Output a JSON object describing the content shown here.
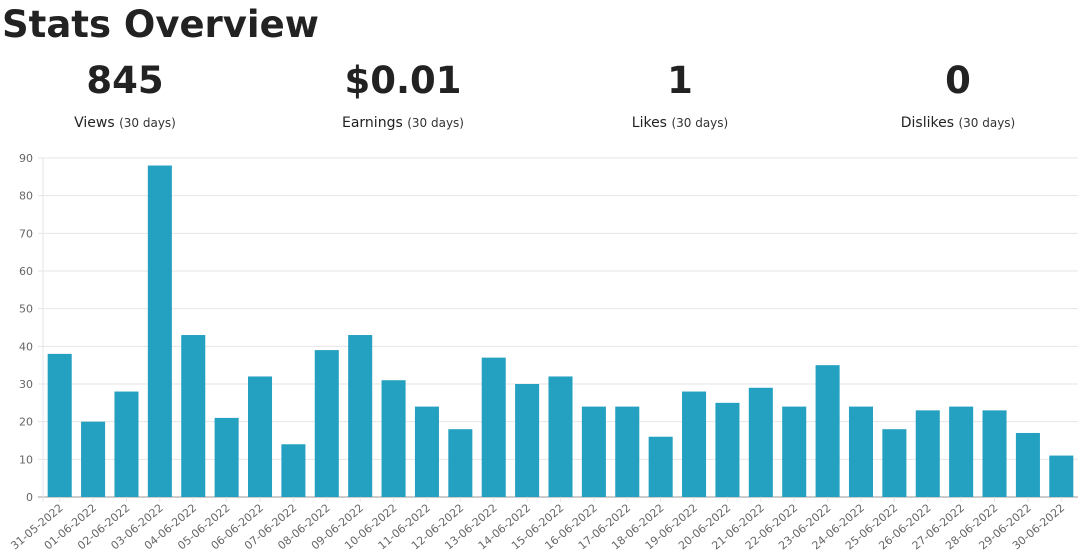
{
  "page": {
    "title": "Stats Overview"
  },
  "stats": [
    {
      "value": "845",
      "label": "Views",
      "period": "(30 days)"
    },
    {
      "value": "$0.01",
      "label": "Earnings",
      "period": "(30 days)"
    },
    {
      "value": "1",
      "label": "Likes",
      "period": "(30 days)"
    },
    {
      "value": "0",
      "label": "Dislikes",
      "period": "(30 days)"
    }
  ],
  "colors": {
    "bar": "#24a0c0",
    "grid": "#e6e6e6",
    "axis": "#999999"
  },
  "chart_data": {
    "type": "bar",
    "title": "",
    "xlabel": "",
    "ylabel": "",
    "ylim": [
      0,
      90
    ],
    "yticks": [
      0,
      10,
      20,
      30,
      40,
      50,
      60,
      70,
      80,
      90
    ],
    "grid": true,
    "categories": [
      "31-05-2022",
      "01-06-2022",
      "02-06-2022",
      "03-06-2022",
      "04-06-2022",
      "05-06-2022",
      "06-06-2022",
      "07-06-2022",
      "08-06-2022",
      "09-06-2022",
      "10-06-2022",
      "11-06-2022",
      "12-06-2022",
      "13-06-2022",
      "14-06-2022",
      "15-06-2022",
      "16-06-2022",
      "17-06-2022",
      "18-06-2022",
      "19-06-2022",
      "20-06-2022",
      "21-06-2022",
      "22-06-2022",
      "23-06-2022",
      "24-06-2022",
      "25-06-2022",
      "26-06-2022",
      "27-06-2022",
      "28-06-2022",
      "29-06-2022",
      "30-06-2022"
    ],
    "values": [
      38,
      20,
      28,
      88,
      43,
      21,
      32,
      14,
      39,
      43,
      31,
      24,
      18,
      37,
      30,
      32,
      24,
      24,
      16,
      28,
      25,
      29,
      24,
      35,
      24,
      18,
      23,
      24,
      23,
      17,
      11
    ]
  }
}
